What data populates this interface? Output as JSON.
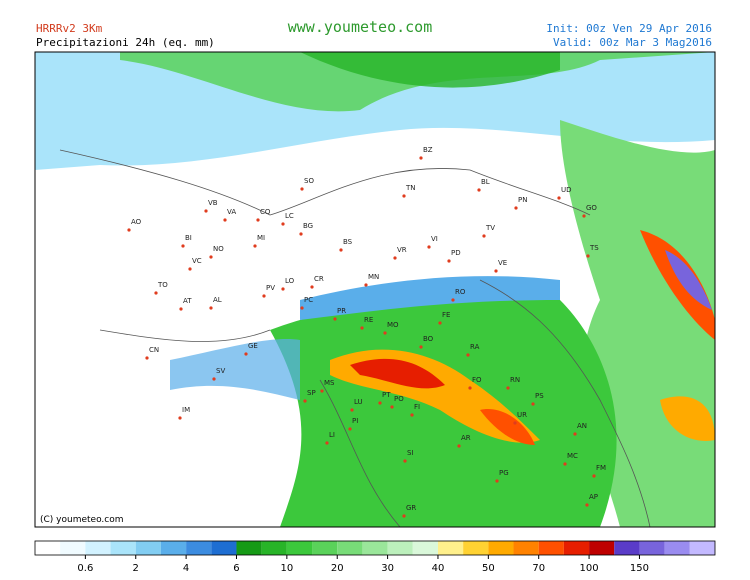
{
  "header": {
    "model": "HRRRv2 3Km",
    "subtitle": "Precipitazioni 24h (eq. mm)",
    "site": "www.youmeteo.com",
    "init": "Init: 00z Ven 29 Apr 2016",
    "valid": "Valid: 00z Mar 3 Mag2016"
  },
  "map": {
    "copyright": "(C) youmeteo.com",
    "cities": [
      "AO",
      "VB",
      "VA",
      "CO",
      "LC",
      "SO",
      "BZ",
      "TN",
      "BL",
      "UD",
      "PN",
      "GO",
      "TS",
      "BI",
      "NO",
      "MI",
      "BG",
      "BS",
      "VR",
      "VI",
      "TV",
      "PD",
      "VE",
      "TO",
      "VC",
      "AT",
      "AL",
      "PV",
      "LO",
      "CR",
      "MN",
      "PC",
      "RO",
      "FE",
      "PR",
      "RE",
      "MO",
      "BO",
      "RA",
      "CN",
      "GE",
      "SP",
      "MS",
      "FO",
      "RN",
      "SV",
      "IM",
      "LU",
      "PT",
      "PO",
      "FI",
      "PS",
      "PI",
      "LI",
      "AR",
      "UR",
      "AN",
      "SI",
      "MC",
      "FM",
      "PG",
      "AP",
      "GR"
    ]
  },
  "colorbar": {
    "colors": [
      "#ffffff",
      "#f0fbff",
      "#d2f2ff",
      "#aae4fa",
      "#82cdf2",
      "#5aaeea",
      "#3c8ce0",
      "#1e6ed2",
      "#169a16",
      "#28b428",
      "#3cc83c",
      "#5ad25a",
      "#78dc78",
      "#9ae69a",
      "#bcf0bc",
      "#daf8da",
      "#fff08c",
      "#ffd232",
      "#ffaa00",
      "#ff8200",
      "#ff5000",
      "#e61e00",
      "#be0000",
      "#5a3cc8",
      "#7864dc",
      "#9a8cf0",
      "#c3b9ff"
    ],
    "labels": [
      "0.6",
      "2",
      "4",
      "6",
      "10",
      "20",
      "30",
      "40",
      "50",
      "70",
      "100",
      "150"
    ]
  }
}
